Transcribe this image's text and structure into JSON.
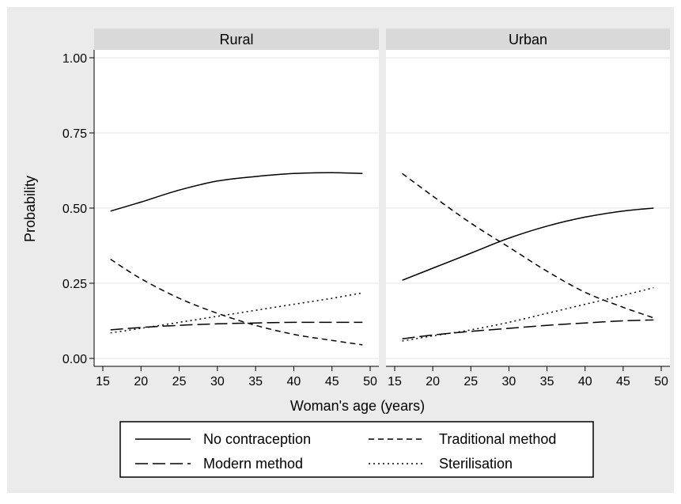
{
  "chart_data": {
    "type": "line",
    "ylabel": "Probability",
    "xlabel": "Woman's age (years)",
    "xlim": [
      15,
      50
    ],
    "ylim": [
      0,
      1
    ],
    "x_ticks": [
      "15",
      "20",
      "25",
      "30",
      "35",
      "40",
      "45",
      "50"
    ],
    "y_ticks": [
      "0.00",
      "0.25",
      "0.50",
      "0.75",
      "1.00"
    ],
    "grid": "horizontal",
    "legend": {
      "placement": "bottom",
      "entries": [
        {
          "label": "No contraception",
          "style": "solid"
        },
        {
          "label": "Traditional method",
          "style": "short-dash"
        },
        {
          "label": "Modern method",
          "style": "long-dash"
        },
        {
          "label": "Sterilisation",
          "style": "dot"
        }
      ]
    },
    "panels": [
      {
        "title": "Rural",
        "x": [
          16,
          20,
          25,
          30,
          35,
          40,
          45,
          49
        ],
        "series": [
          {
            "name": "No contraception",
            "style": "solid",
            "values": [
              0.49,
              0.52,
              0.56,
              0.59,
              0.605,
              0.615,
              0.618,
              0.615
            ]
          },
          {
            "name": "Traditional method",
            "style": "short-dash",
            "values": [
              0.33,
              0.265,
              0.2,
              0.15,
              0.11,
              0.08,
              0.06,
              0.045
            ]
          },
          {
            "name": "Modern method",
            "style": "long-dash",
            "values": [
              0.095,
              0.103,
              0.11,
              0.115,
              0.118,
              0.12,
              0.12,
              0.12
            ]
          },
          {
            "name": "Sterilisation",
            "style": "dot",
            "values": [
              0.085,
              0.1,
              0.12,
              0.14,
              0.16,
              0.18,
              0.2,
              0.218
            ]
          }
        ]
      },
      {
        "title": "Urban",
        "x": [
          16,
          20,
          25,
          30,
          35,
          40,
          45,
          49
        ],
        "series": [
          {
            "name": "No contraception",
            "style": "solid",
            "values": [
              0.26,
              0.3,
              0.35,
              0.4,
              0.44,
              0.47,
              0.49,
              0.5
            ]
          },
          {
            "name": "Traditional method",
            "style": "short-dash",
            "values": [
              0.615,
              0.54,
              0.45,
              0.37,
              0.29,
              0.22,
              0.17,
              0.135
            ]
          },
          {
            "name": "Modern method",
            "style": "long-dash",
            "values": [
              0.065,
              0.078,
              0.09,
              0.1,
              0.11,
              0.118,
              0.125,
              0.128
            ]
          },
          {
            "name": "Sterilisation",
            "style": "dot",
            "values": [
              0.058,
              0.075,
              0.095,
              0.12,
              0.15,
              0.18,
              0.21,
              0.235
            ]
          }
        ]
      }
    ]
  }
}
